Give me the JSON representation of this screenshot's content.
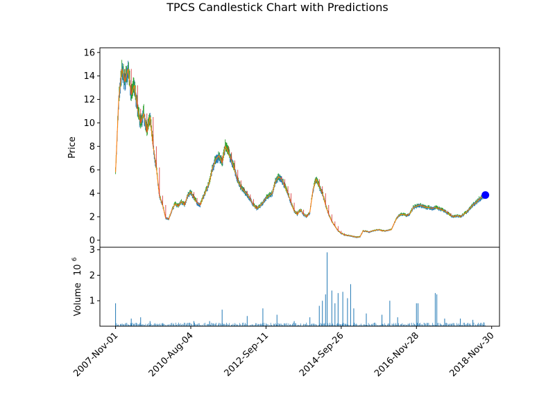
{
  "chart_data": {
    "type": "candlestick",
    "title": "TPCS Candlestick Chart with Predictions",
    "price_panel": {
      "ylabel": "Price",
      "ylim": [
        -0.6,
        16.4
      ],
      "yticks": [
        0,
        2,
        4,
        6,
        8,
        10,
        12,
        14,
        16
      ],
      "grid": false,
      "series_colors": {
        "up": "#2ca02c",
        "down": "#d62728",
        "line": "#ff7f0e",
        "wick": "#1f77b4"
      },
      "close_points": [
        [
          0,
          5.8
        ],
        [
          4,
          12.0
        ],
        [
          8,
          14.6
        ],
        [
          12,
          13.5
        ],
        [
          16,
          14.6
        ],
        [
          20,
          12.4
        ],
        [
          24,
          13.2
        ],
        [
          28,
          11.2
        ],
        [
          32,
          10.0
        ],
        [
          36,
          10.8
        ],
        [
          40,
          9.2
        ],
        [
          44,
          10.5
        ],
        [
          48,
          8.0
        ],
        [
          52,
          6.2
        ],
        [
          56,
          3.8
        ],
        [
          60,
          3.0
        ],
        [
          64,
          1.9
        ],
        [
          68,
          1.8
        ],
        [
          72,
          2.6
        ],
        [
          76,
          3.1
        ],
        [
          80,
          2.9
        ],
        [
          84,
          3.3
        ],
        [
          88,
          3.0
        ],
        [
          92,
          3.8
        ],
        [
          96,
          4.1
        ],
        [
          100,
          3.6
        ],
        [
          104,
          3.2
        ],
        [
          108,
          3.0
        ],
        [
          112,
          3.7
        ],
        [
          116,
          4.3
        ],
        [
          120,
          5.0
        ],
        [
          124,
          6.2
        ],
        [
          128,
          6.9
        ],
        [
          132,
          7.2
        ],
        [
          136,
          6.6
        ],
        [
          140,
          8.0
        ],
        [
          144,
          7.5
        ],
        [
          148,
          6.8
        ],
        [
          152,
          6.0
        ],
        [
          156,
          5.1
        ],
        [
          160,
          4.5
        ],
        [
          164,
          4.2
        ],
        [
          168,
          3.9
        ],
        [
          172,
          3.5
        ],
        [
          176,
          3.0
        ],
        [
          180,
          2.7
        ],
        [
          184,
          2.9
        ],
        [
          188,
          3.2
        ],
        [
          192,
          3.6
        ],
        [
          196,
          3.8
        ],
        [
          200,
          4.0
        ],
        [
          204,
          5.0
        ],
        [
          208,
          5.4
        ],
        [
          212,
          5.2
        ],
        [
          216,
          4.6
        ],
        [
          220,
          4.0
        ],
        [
          224,
          3.2
        ],
        [
          228,
          2.5
        ],
        [
          232,
          2.2
        ],
        [
          236,
          2.6
        ],
        [
          240,
          2.2
        ],
        [
          244,
          2.0
        ],
        [
          248,
          2.4
        ],
        [
          252,
          4.3
        ],
        [
          256,
          5.2
        ],
        [
          260,
          4.6
        ],
        [
          264,
          4.0
        ],
        [
          268,
          3.0
        ],
        [
          272,
          2.2
        ],
        [
          276,
          1.6
        ],
        [
          280,
          1.2
        ],
        [
          284,
          0.8
        ],
        [
          288,
          0.6
        ],
        [
          292,
          0.45
        ],
        [
          296,
          0.4
        ],
        [
          300,
          0.38
        ],
        [
          304,
          0.3
        ],
        [
          308,
          0.25
        ],
        [
          312,
          0.3
        ],
        [
          316,
          0.8
        ],
        [
          320,
          0.75
        ],
        [
          324,
          0.7
        ],
        [
          328,
          0.8
        ],
        [
          332,
          0.85
        ],
        [
          336,
          0.9
        ],
        [
          340,
          0.8
        ],
        [
          344,
          0.8
        ],
        [
          348,
          0.85
        ],
        [
          352,
          0.9
        ],
        [
          356,
          1.5
        ],
        [
          360,
          2.0
        ],
        [
          364,
          2.2
        ],
        [
          368,
          2.2
        ],
        [
          372,
          2.1
        ],
        [
          376,
          2.3
        ],
        [
          380,
          2.8
        ],
        [
          384,
          2.9
        ],
        [
          388,
          3.0
        ],
        [
          392,
          2.9
        ],
        [
          396,
          2.8
        ],
        [
          400,
          2.8
        ],
        [
          404,
          2.7
        ],
        [
          408,
          2.8
        ],
        [
          412,
          2.7
        ],
        [
          416,
          2.6
        ],
        [
          420,
          2.5
        ],
        [
          424,
          2.3
        ],
        [
          428,
          2.1
        ],
        [
          432,
          2.0
        ],
        [
          436,
          2.1
        ],
        [
          440,
          2.0
        ],
        [
          444,
          2.2
        ],
        [
          448,
          2.4
        ],
        [
          452,
          2.7
        ],
        [
          456,
          3.0
        ],
        [
          460,
          3.2
        ],
        [
          464,
          3.5
        ],
        [
          468,
          3.7
        ],
        [
          472,
          3.75
        ]
      ],
      "prediction": {
        "x": 472,
        "y": 3.85,
        "color": "#0000ff"
      }
    },
    "volume_panel": {
      "ylabel": "Volume",
      "scale_label": "10",
      "scale_exponent": "6",
      "ylim": [
        0,
        3.1
      ],
      "yticks": [
        1,
        2,
        3
      ],
      "color": "#1f77b4",
      "spikes": [
        [
          0,
          0.9
        ],
        [
          20,
          0.3
        ],
        [
          32,
          0.35
        ],
        [
          44,
          0.2
        ],
        [
          60,
          0.1
        ],
        [
          100,
          0.2
        ],
        [
          120,
          0.2
        ],
        [
          136,
          0.65
        ],
        [
          168,
          0.4
        ],
        [
          188,
          0.7
        ],
        [
          206,
          0.45
        ],
        [
          228,
          0.2
        ],
        [
          248,
          0.35
        ],
        [
          260,
          0.8
        ],
        [
          264,
          1.0
        ],
        [
          268,
          1.25
        ],
        [
          270,
          2.9
        ],
        [
          276,
          1.4
        ],
        [
          280,
          0.9
        ],
        [
          284,
          1.3
        ],
        [
          290,
          1.35
        ],
        [
          296,
          1.1
        ],
        [
          300,
          1.65
        ],
        [
          304,
          0.7
        ],
        [
          320,
          0.5
        ],
        [
          340,
          0.45
        ],
        [
          350,
          1.0
        ],
        [
          360,
          0.35
        ],
        [
          384,
          0.9
        ],
        [
          386,
          0.9
        ],
        [
          408,
          1.3
        ],
        [
          410,
          1.25
        ],
        [
          420,
          0.3
        ],
        [
          440,
          0.3
        ],
        [
          456,
          0.25
        ],
        [
          470,
          0.15
        ]
      ]
    },
    "x_axis": {
      "range": [
        -20,
        490
      ],
      "tick_positions": [
        0,
        96,
        192,
        288,
        384,
        480
      ],
      "tick_labels": [
        "2007-Nov-01",
        "2010-Aug-04",
        "2012-Sep-11",
        "2014-Sep-26",
        "2016-Nov-28",
        "2018-Nov-30"
      ],
      "label_rotation": 45
    }
  }
}
